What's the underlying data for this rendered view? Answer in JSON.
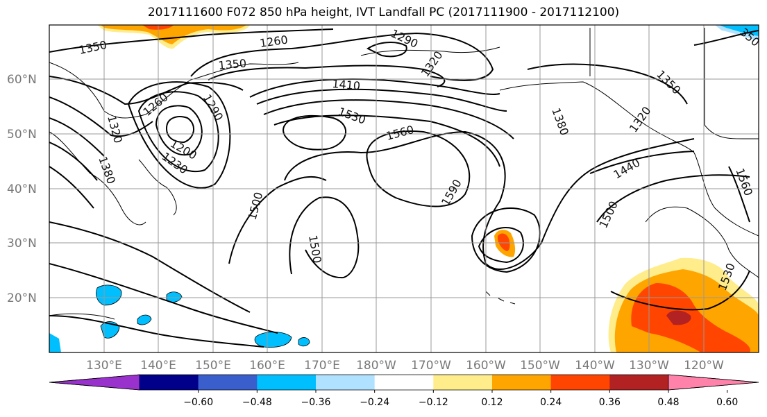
{
  "title": "2017111600 F072 850 hPa height, IVT Landfall PC (2017111900 - 2017112100)",
  "lat_labels": [
    "60°N",
    "50°N",
    "40°N",
    "30°N",
    "20°N"
  ],
  "lon_labels": [
    "130°E",
    "140°E",
    "150°E",
    "160°E",
    "170°E",
    "180°W",
    "170°W",
    "160°W",
    "150°W",
    "140°W",
    "130°W",
    "120°W"
  ],
  "contour_labels": [
    {
      "id": "c1350a",
      "text": "1350"
    },
    {
      "id": "c1260",
      "text": "1260"
    },
    {
      "id": "c1290a",
      "text": "1290"
    },
    {
      "id": "c1320a",
      "text": "1320"
    },
    {
      "id": "c1350b",
      "text": "1350"
    },
    {
      "id": "c1410",
      "text": "1410"
    },
    {
      "id": "c1530a",
      "text": "1530"
    },
    {
      "id": "c1560a",
      "text": "1560"
    },
    {
      "id": "c1380",
      "text": "1380"
    },
    {
      "id": "c1350c",
      "text": "1350"
    },
    {
      "id": "c1320b",
      "text": "1320"
    },
    {
      "id": "c1440",
      "text": "1440"
    },
    {
      "id": "c1260b",
      "text": "1260"
    },
    {
      "id": "c1290b",
      "text": "1290"
    },
    {
      "id": "c1200",
      "text": "1200"
    },
    {
      "id": "c1230",
      "text": "1230"
    },
    {
      "id": "c1320c",
      "text": "1320"
    },
    {
      "id": "c1380b",
      "text": "1380"
    },
    {
      "id": "c1500a",
      "text": "1500"
    },
    {
      "id": "c1590",
      "text": "1590"
    },
    {
      "id": "c1500b",
      "text": "1500"
    },
    {
      "id": "c1500c",
      "text": "1500"
    },
    {
      "id": "c1560b",
      "text": "1560"
    },
    {
      "id": "c1530b",
      "text": "1530"
    },
    {
      "id": "c350",
      "text": "350"
    }
  ],
  "colorbar": {
    "ticks": [
      "−0.60",
      "−0.48",
      "−0.36",
      "−0.24",
      "−0.12",
      "0.12",
      "0.24",
      "0.36",
      "0.48",
      "0.60"
    ],
    "colors": [
      "#9932cc",
      "#00008b",
      "#3a5fcd",
      "#00bfff",
      "#b0e2ff",
      "#ffffff",
      "#ffec8b",
      "#ffa500",
      "#ff4500",
      "#b22222",
      "#ff82ab"
    ]
  },
  "shading_colors": {
    "light_orange": "#ffec8b",
    "orange": "#ffa500",
    "red_orange": "#ff4500",
    "dark_red": "#b22222",
    "cyan": "#00bfff",
    "light_blue": "#b0e2ff"
  }
}
